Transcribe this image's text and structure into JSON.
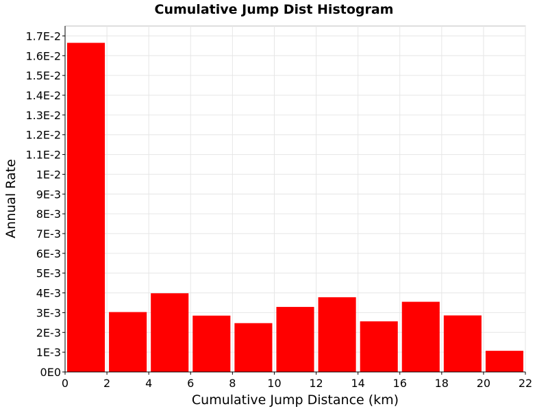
{
  "chart_data": {
    "type": "bar",
    "title": "Cumulative Jump Dist Histogram",
    "xlabel": "Cumulative Jump Distance (km)",
    "ylabel": "Annual Rate",
    "xlim": [
      0,
      22
    ],
    "ylim": [
      0,
      0.0175
    ],
    "x_ticks": [
      {
        "value": 0,
        "label": "0"
      },
      {
        "value": 2,
        "label": "2"
      },
      {
        "value": 4,
        "label": "4"
      },
      {
        "value": 6,
        "label": "6"
      },
      {
        "value": 8,
        "label": "8"
      },
      {
        "value": 10,
        "label": "10"
      },
      {
        "value": 12,
        "label": "12"
      },
      {
        "value": 14,
        "label": "14"
      },
      {
        "value": 16,
        "label": "16"
      },
      {
        "value": 18,
        "label": "18"
      },
      {
        "value": 20,
        "label": "20"
      },
      {
        "value": 22,
        "label": "22"
      }
    ],
    "y_ticks": [
      {
        "value": 0,
        "label": "0E0"
      },
      {
        "value": 0.001,
        "label": "1E-3"
      },
      {
        "value": 0.002,
        "label": "2E-3"
      },
      {
        "value": 0.003,
        "label": "3E-3"
      },
      {
        "value": 0.004,
        "label": "4E-3"
      },
      {
        "value": 0.005,
        "label": "5E-3"
      },
      {
        "value": 0.006,
        "label": "6E-3"
      },
      {
        "value": 0.007,
        "label": "7E-3"
      },
      {
        "value": 0.008,
        "label": "8E-3"
      },
      {
        "value": 0.009,
        "label": "9E-3"
      },
      {
        "value": 0.01,
        "label": "1E-2"
      },
      {
        "value": 0.011,
        "label": "1.1E-2"
      },
      {
        "value": 0.012,
        "label": "1.2E-2"
      },
      {
        "value": 0.013,
        "label": "1.3E-2"
      },
      {
        "value": 0.014,
        "label": "1.4E-2"
      },
      {
        "value": 0.015,
        "label": "1.5E-2"
      },
      {
        "value": 0.016,
        "label": "1.6E-2"
      },
      {
        "value": 0.017,
        "label": "1.7E-2"
      }
    ],
    "bins": [
      {
        "x_start": 0,
        "x_end": 2,
        "value": 0.01665
      },
      {
        "x_start": 2,
        "x_end": 4,
        "value": 0.00303
      },
      {
        "x_start": 4,
        "x_end": 6,
        "value": 0.00398
      },
      {
        "x_start": 6,
        "x_end": 8,
        "value": 0.00285
      },
      {
        "x_start": 8,
        "x_end": 10,
        "value": 0.00247
      },
      {
        "x_start": 10,
        "x_end": 12,
        "value": 0.00329
      },
      {
        "x_start": 12,
        "x_end": 14,
        "value": 0.00378
      },
      {
        "x_start": 14,
        "x_end": 16,
        "value": 0.00256
      },
      {
        "x_start": 16,
        "x_end": 18,
        "value": 0.00355
      },
      {
        "x_start": 18,
        "x_end": 20,
        "value": 0.00286
      },
      {
        "x_start": 20,
        "x_end": 22,
        "value": 0.00107
      }
    ],
    "bar_color": "#ff0000",
    "grid": true
  }
}
